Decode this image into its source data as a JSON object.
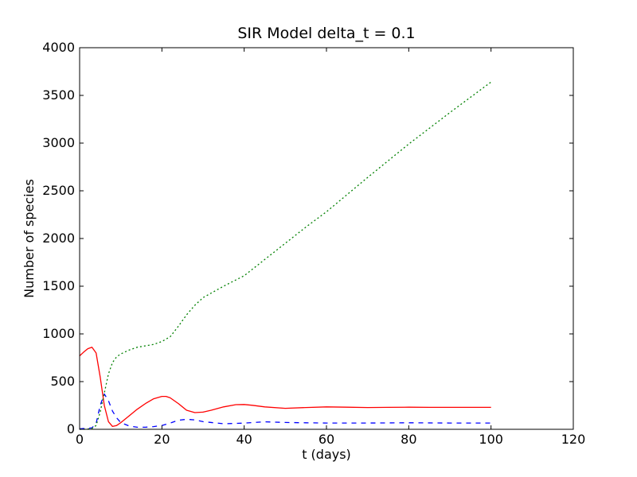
{
  "chart_data": {
    "type": "line",
    "title": "SIR Model delta_t = 0.1",
    "xlabel": "t (days)",
    "ylabel": "Number of species",
    "xlim": [
      0,
      120
    ],
    "ylim": [
      0,
      4000
    ],
    "xticks": [
      "0",
      "20",
      "40",
      "60",
      "80",
      "100",
      "120"
    ],
    "yticks": [
      "0",
      "500",
      "1000",
      "1500",
      "2000",
      "2500",
      "3000",
      "3500",
      "4000"
    ],
    "grid": false,
    "legend": "none",
    "series": [
      {
        "color": "#ff0000",
        "style": "solid",
        "x": [
          0,
          1,
          2,
          3,
          4,
          5,
          6,
          7,
          8,
          9,
          10,
          12,
          14,
          16,
          18,
          20,
          21,
          22,
          24,
          26,
          28,
          30,
          32,
          35,
          38,
          40,
          42,
          45,
          50,
          55,
          60,
          65,
          70,
          75,
          80,
          85,
          90,
          95,
          100
        ],
        "y": [
          770,
          810,
          845,
          860,
          800,
          550,
          250,
          80,
          30,
          40,
          70,
          140,
          210,
          270,
          320,
          345,
          345,
          330,
          270,
          200,
          175,
          180,
          200,
          235,
          258,
          260,
          252,
          235,
          220,
          228,
          235,
          232,
          228,
          230,
          232,
          230,
          230,
          230,
          230
        ]
      },
      {
        "color": "#0000ff",
        "style": "dashed",
        "x": [
          0,
          1,
          2,
          3,
          4,
          5,
          6,
          7,
          8,
          9,
          10,
          12,
          14,
          16,
          18,
          20,
          22,
          24,
          26,
          28,
          30,
          35,
          40,
          45,
          50,
          55,
          60,
          70,
          80,
          90,
          100
        ],
        "y": [
          5,
          8,
          10,
          15,
          60,
          250,
          370,
          300,
          190,
          120,
          70,
          35,
          22,
          22,
          28,
          40,
          65,
          95,
          105,
          98,
          80,
          58,
          65,
          78,
          72,
          68,
          66,
          66,
          68,
          66,
          66
        ]
      },
      {
        "color": "#008000",
        "style": "dotted",
        "x": [
          0,
          1,
          2,
          3,
          4,
          5,
          6,
          7,
          8,
          9,
          10,
          12,
          14,
          16,
          18,
          20,
          22,
          24,
          26,
          28,
          30,
          35,
          40,
          45,
          50,
          55,
          60,
          70,
          80,
          90,
          100
        ],
        "y": [
          0,
          0,
          3,
          10,
          40,
          180,
          380,
          580,
          700,
          760,
          790,
          830,
          860,
          875,
          890,
          920,
          970,
          1080,
          1200,
          1300,
          1380,
          1500,
          1610,
          1780,
          1950,
          2120,
          2280,
          2640,
          2990,
          3320,
          3640
        ]
      }
    ]
  }
}
